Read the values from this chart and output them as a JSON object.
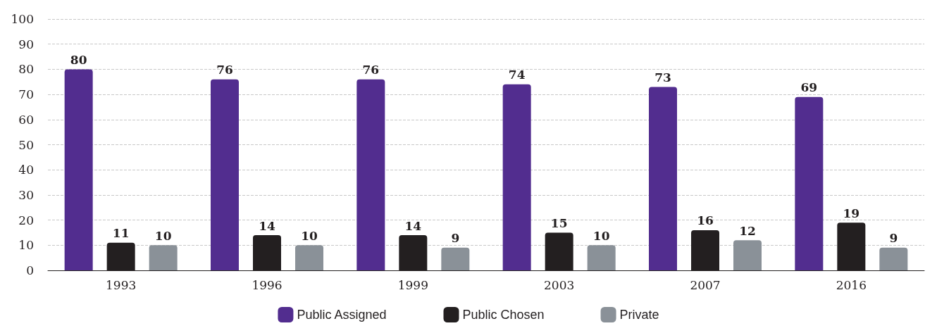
{
  "chart_data": {
    "type": "bar",
    "categories": [
      "1993",
      "1996",
      "1999",
      "2003",
      "2007",
      "2016"
    ],
    "series": [
      {
        "name": "Public Assigned",
        "color": "#522d8f",
        "values": [
          80,
          76,
          76,
          74,
          73,
          69
        ]
      },
      {
        "name": "Public Chosen",
        "color": "#231f20",
        "values": [
          11,
          14,
          14,
          15,
          16,
          19
        ]
      },
      {
        "name": "Private",
        "color": "#8a9198",
        "values": [
          10,
          10,
          9,
          10,
          12,
          9
        ]
      }
    ],
    "ylim": [
      0,
      100
    ],
    "yticks": [
      0,
      10,
      20,
      30,
      40,
      50,
      60,
      70,
      80,
      90,
      100
    ],
    "grid": "y",
    "legend": "bottom",
    "data_labels": true
  }
}
